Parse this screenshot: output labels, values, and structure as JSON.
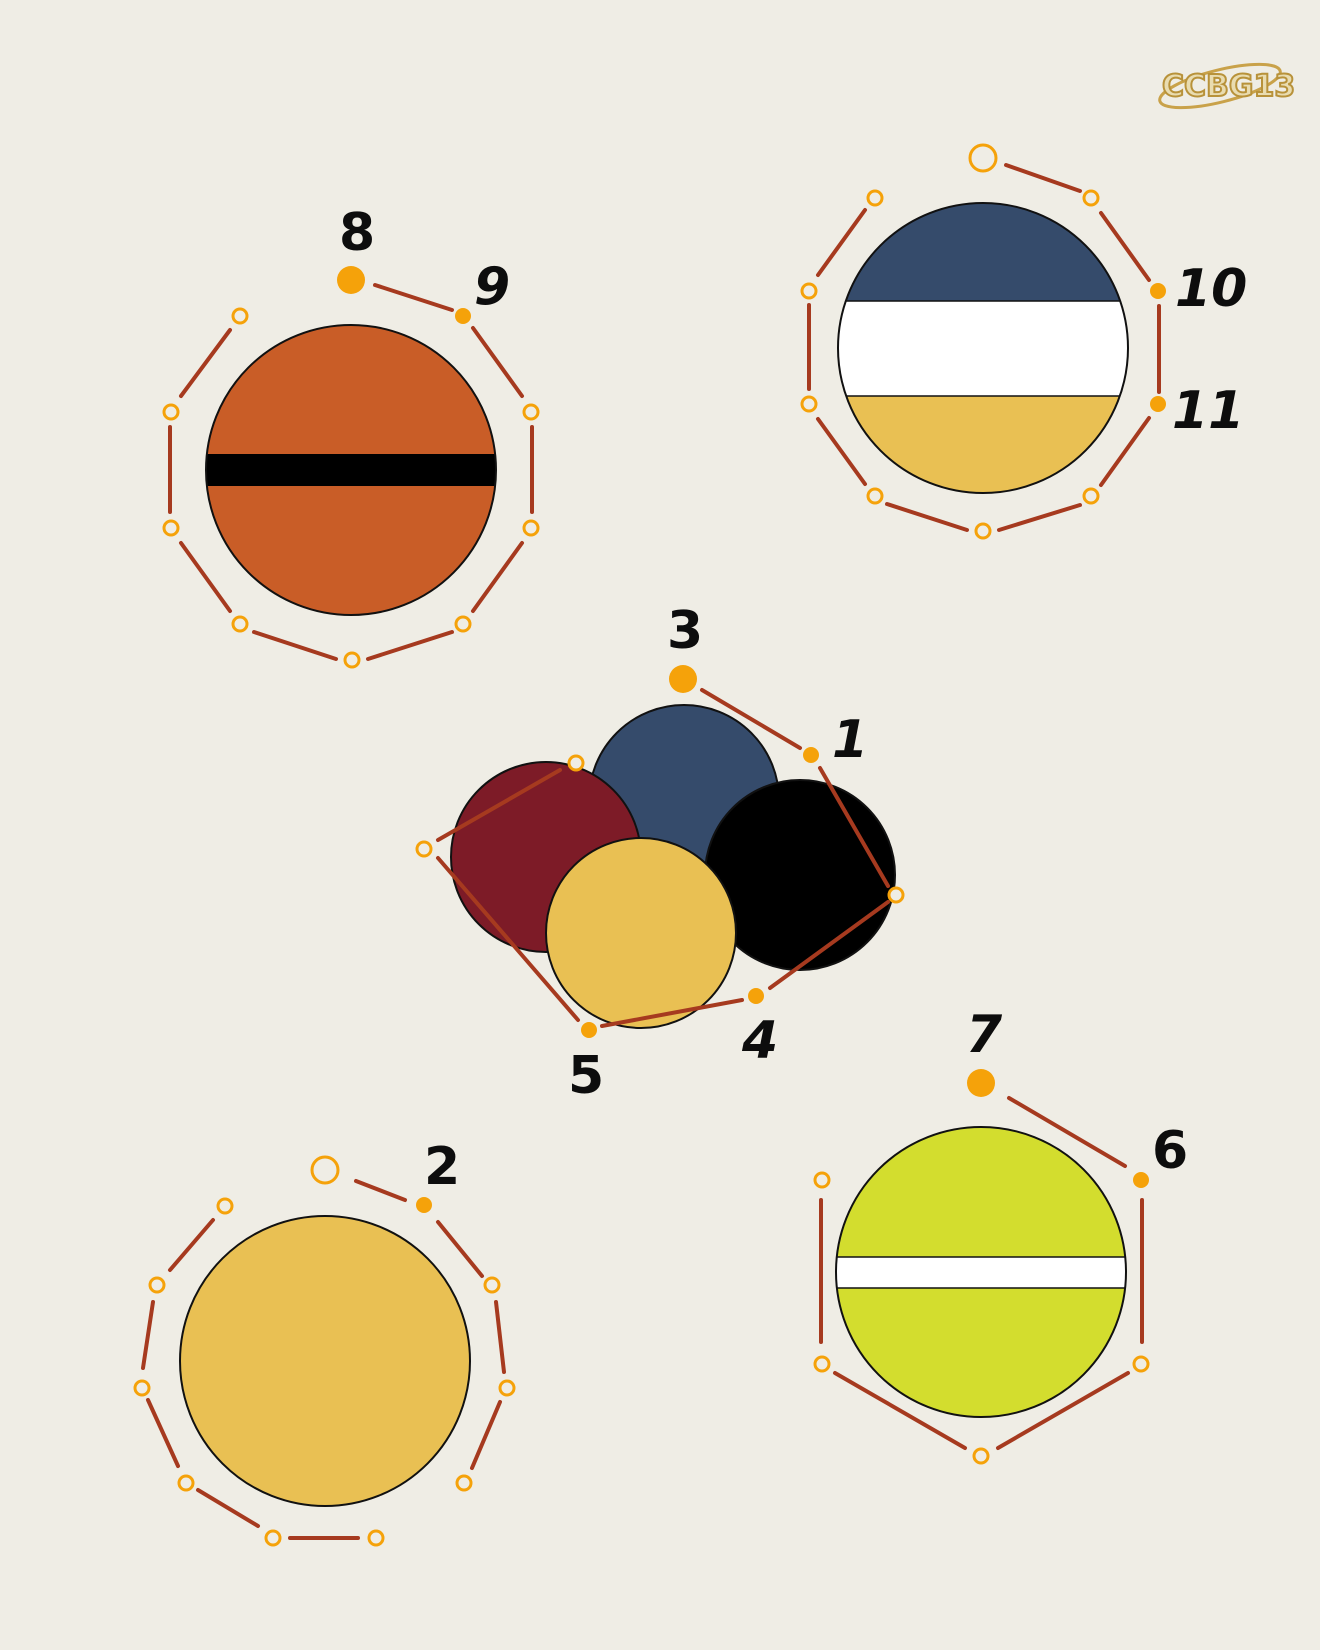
{
  "logo": {
    "text": "CCBG13"
  },
  "colors": {
    "background": "#efede5",
    "edge": "#a63a1f",
    "node": "#f5a20a",
    "orange": "#c95d27",
    "black": "#000000",
    "navy": "#354b6b",
    "white": "#ffffff",
    "gold": "#e9c053",
    "maroon": "#7d1b27",
    "lime": "#d3dd2e"
  },
  "groups": {
    "top_left": {
      "name": "orange-ball-with-black-stripe",
      "labels": [
        "8",
        "9"
      ]
    },
    "top_right": {
      "name": "navy-white-gold-ball",
      "labels": [
        "10",
        "11"
      ]
    },
    "center": {
      "name": "four-ball-cluster",
      "labels": [
        "3",
        "1",
        "4",
        "5"
      ]
    },
    "bottom_left": {
      "name": "gold-ball",
      "labels": [
        "2"
      ]
    },
    "bottom_right": {
      "name": "lime-ball-with-white-stripe",
      "labels": [
        "7",
        "6"
      ]
    }
  }
}
